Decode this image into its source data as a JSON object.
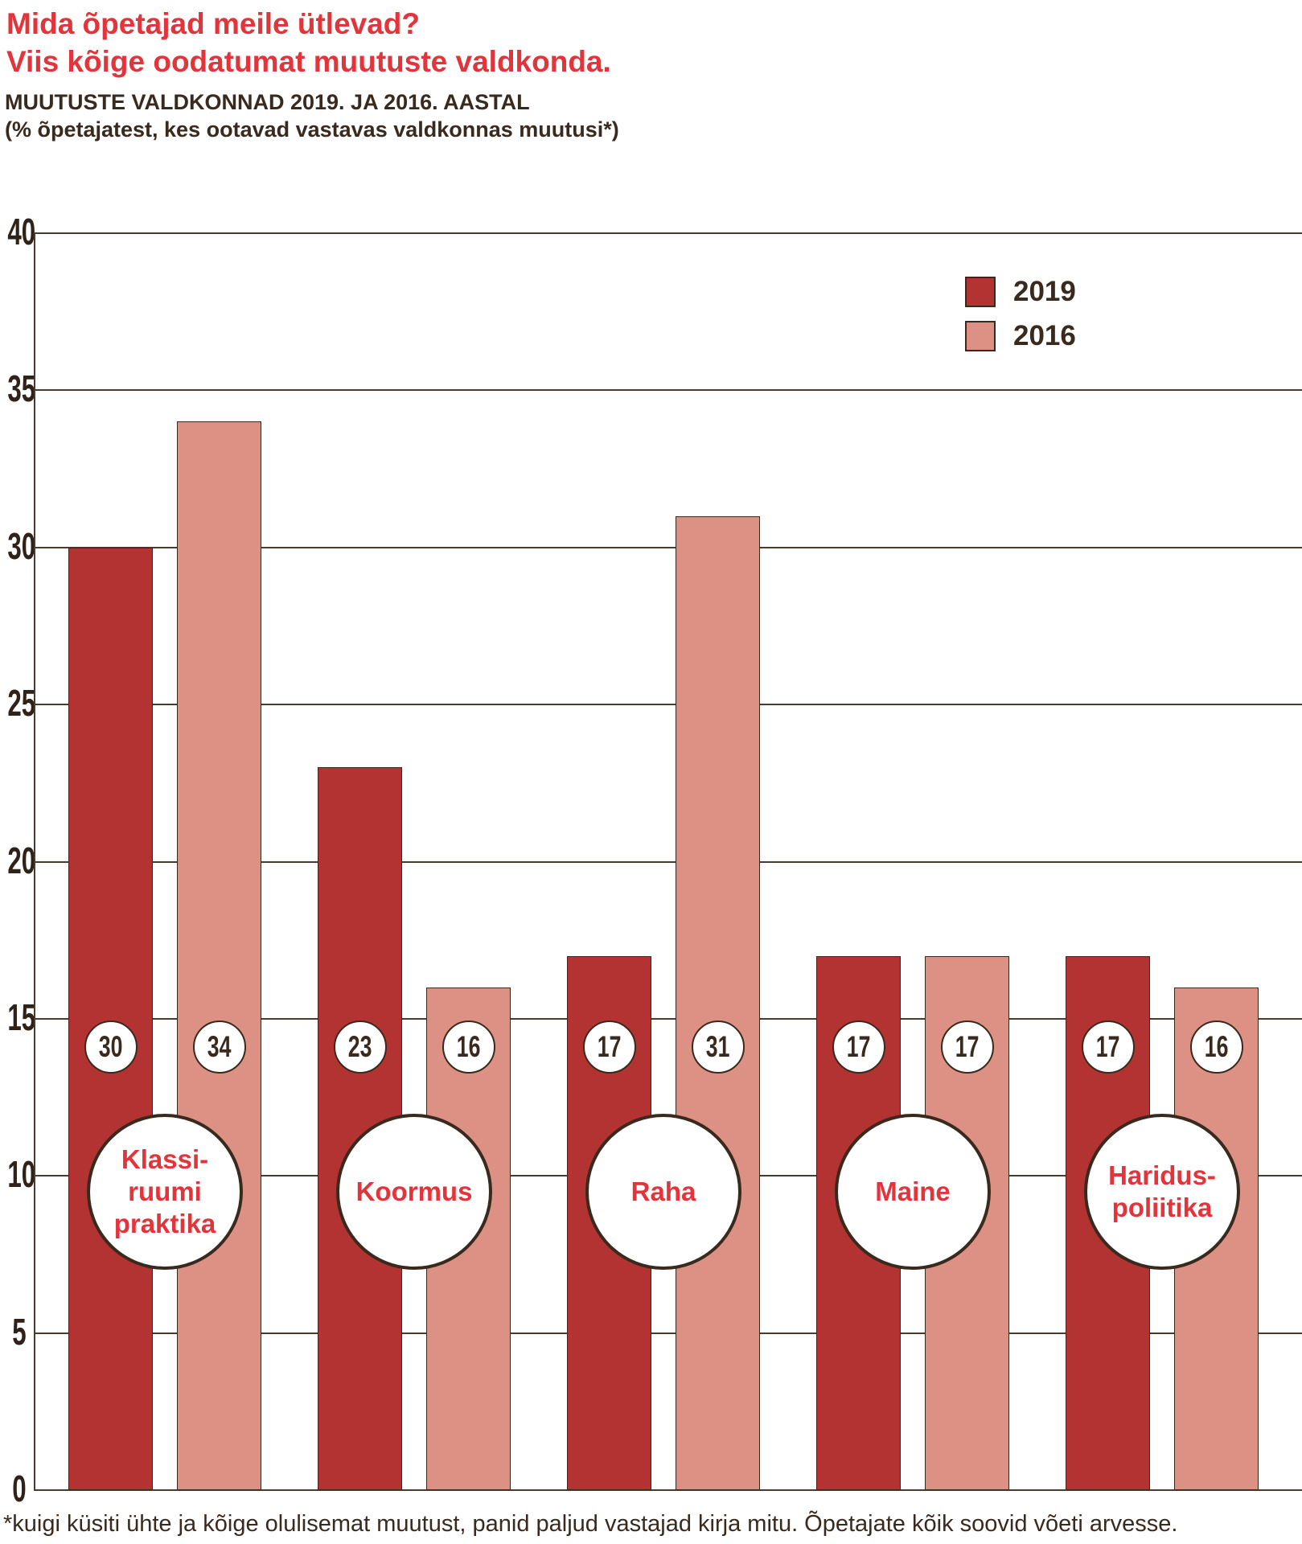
{
  "header": {
    "title_line1": "Mida õpetajad meile ütlevad?",
    "title_line2": "Viis kõige oodatumat muutuste valdkonda.",
    "subtitle_line1": "MUUTUSTE VALDKONNAD 2019. JA 2016. AASTAL",
    "subtitle_line2": "(% õpetajatest, kes ootavad vastavas valdkonnas muutusi*)"
  },
  "chart_data": {
    "type": "bar",
    "title": "Muutuste valdkonnad 2019. ja 2016. aastal",
    "subtitle": "% õpetajatest, kes ootavad vastavas valdkonnas muutusi",
    "categories": [
      "Klassiruumi praktika",
      "Koormus",
      "Raha",
      "Maine",
      "Hariduspoliitika"
    ],
    "category_lines": [
      [
        "Klassi-",
        "ruumi",
        "praktika"
      ],
      [
        "Koormus"
      ],
      [
        "Raha"
      ],
      [
        "Maine"
      ],
      [
        "Haridus-",
        "poliitika"
      ]
    ],
    "series": [
      {
        "name": "2019",
        "values": [
          30,
          23,
          17,
          17,
          17
        ],
        "color": "#b23331"
      },
      {
        "name": "2016",
        "values": [
          34,
          16,
          31,
          17,
          16
        ],
        "color": "#dd9184"
      }
    ],
    "xlabel": "",
    "ylabel": "",
    "ylim": [
      0,
      40
    ],
    "yticks": [
      0,
      5,
      10,
      15,
      20,
      25,
      30,
      35,
      40
    ],
    "grid": true,
    "legend_position": "top-right",
    "value_label_style": "white circles on bars"
  },
  "legend": {
    "items": [
      {
        "label": "2019",
        "color": "#b23331"
      },
      {
        "label": "2016",
        "color": "#dd9184"
      }
    ]
  },
  "footnote": "*kuigi küsiti ühte ja kõige olulisemat muutust, panid paljud vastajad kirja mitu. Õpetajate kõik soovid võeti arvesse.",
  "colors": {
    "title_red": "#e2343b",
    "dark_text": "#3a2a1e",
    "bar_2019": "#b23331",
    "bar_2016": "#dd9184",
    "gridline": "#4a3b2f",
    "circle_text_red": "#e2343b",
    "background": "#ffffff"
  }
}
